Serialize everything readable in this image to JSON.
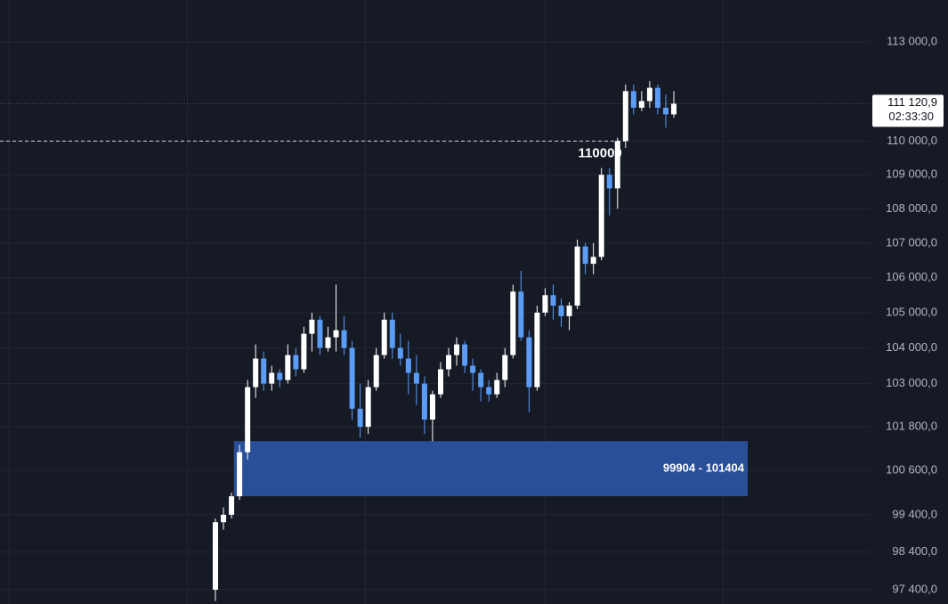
{
  "chart_data": {
    "type": "candlestick",
    "log": true,
    "grid": true,
    "up_color": "#ffffff",
    "down_color": "#5b9cf6",
    "zone_color": "#2a4f99",
    "ylim": [
      97024,
      114290
    ],
    "yticks": [
      {
        "value": 97400,
        "label": "97 400,0"
      },
      {
        "value": 98400,
        "label": "98 400,0"
      },
      {
        "value": 99400,
        "label": "99 400,0"
      },
      {
        "value": 100600,
        "label": "100 600,0"
      },
      {
        "value": 101800,
        "label": "101 800,0"
      },
      {
        "value": 103000,
        "label": "103 000,0"
      },
      {
        "value": 104000,
        "label": "104 000,0"
      },
      {
        "value": 105000,
        "label": "105 000,0"
      },
      {
        "value": 106000,
        "label": "106 000,0"
      },
      {
        "value": 107000,
        "label": "107 000,0"
      },
      {
        "value": 108000,
        "label": "108 000,0"
      },
      {
        "value": 109000,
        "label": "109 000,0"
      },
      {
        "value": 110000,
        "label": "110 000,0"
      },
      {
        "value": 113000,
        "label": "113 000,0"
      }
    ],
    "open": [
      97400,
      99200,
      99400,
      99900,
      101100,
      102900,
      103700,
      103000,
      103300,
      103100,
      103800,
      103400,
      104400,
      104800,
      104000,
      104300,
      104500,
      104000,
      102300,
      101800,
      102900,
      103800,
      104800,
      104000,
      103700,
      103300,
      103000,
      102000,
      102700,
      103400,
      103800,
      104100,
      103500,
      103300,
      102900,
      102700,
      103100,
      103800,
      105600,
      104300,
      102900,
      105000,
      105500,
      105200,
      104900,
      105200,
      106900,
      106400,
      106600,
      109000,
      108600,
      110000,
      111500,
      111000,
      111200,
      111600,
      111000,
      110800
    ],
    "high": [
      99300,
      99600,
      100000,
      101300,
      103100,
      104100,
      103900,
      103500,
      103400,
      104100,
      104000,
      104600,
      105000,
      104900,
      104600,
      105800,
      104900,
      104200,
      103000,
      103100,
      104000,
      105000,
      105000,
      104400,
      104200,
      103800,
      103200,
      102800,
      103600,
      104000,
      104300,
      104200,
      103700,
      103400,
      103100,
      103300,
      104000,
      105800,
      106200,
      104500,
      105200,
      105700,
      105800,
      105400,
      105300,
      107100,
      107000,
      107000,
      109200,
      109200,
      110100,
      111700,
      111700,
      111500,
      111800,
      111700,
      111400,
      111500
    ],
    "low": [
      97100,
      99000,
      99300,
      99800,
      100900,
      102600,
      102800,
      102800,
      102900,
      103000,
      103200,
      103300,
      103900,
      103800,
      103900,
      103900,
      103800,
      102000,
      101500,
      101600,
      102800,
      103700,
      103700,
      103500,
      102700,
      102400,
      101600,
      101400,
      102600,
      103200,
      103500,
      103300,
      102800,
      102500,
      102500,
      102600,
      102900,
      103700,
      104200,
      102200,
      102800,
      104900,
      104800,
      104600,
      104500,
      105100,
      106100,
      106100,
      106500,
      107800,
      108000,
      109800,
      110800,
      110900,
      111000,
      110800,
      110400,
      110700
    ],
    "close": [
      99200,
      99400,
      99900,
      101100,
      102900,
      103700,
      103000,
      103300,
      103100,
      103800,
      103400,
      104400,
      104800,
      104000,
      104300,
      104500,
      104000,
      102300,
      101800,
      102900,
      103800,
      104800,
      104000,
      103700,
      103300,
      103000,
      102000,
      102700,
      103400,
      103800,
      104100,
      103500,
      103300,
      102900,
      102700,
      103100,
      103800,
      105600,
      104300,
      102900,
      105000,
      105500,
      105200,
      104900,
      105200,
      106900,
      106400,
      106600,
      109000,
      108600,
      110000,
      111500,
      111000,
      111200,
      111600,
      111000,
      110800,
      111120.9
    ],
    "level": 110000,
    "zone_low": 99904,
    "zone_high": 101404,
    "zone_label": "99904 - 101404",
    "last_price": {
      "value": 111120.9,
      "label": "111 120,9"
    },
    "countdown": "02:33:30"
  }
}
